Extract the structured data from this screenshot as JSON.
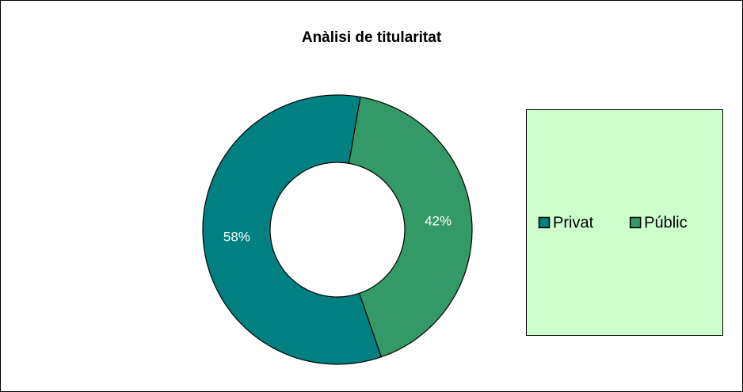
{
  "chart_data": {
    "type": "donut",
    "title": "Anàlisi de titularitat",
    "categories": [
      "Privat",
      "Públic"
    ],
    "values": [
      58,
      42
    ],
    "value_labels": [
      "58%",
      "42%"
    ],
    "colors": [
      "#008080",
      "#339966"
    ],
    "legend": "right"
  }
}
